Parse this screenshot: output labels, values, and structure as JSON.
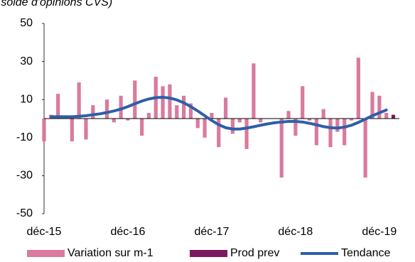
{
  "chart_data": {
    "type": "bar",
    "title": "(solde d'opinions CVS)",
    "categories": [
      "déc-15",
      null,
      null,
      null,
      null,
      null,
      null,
      null,
      null,
      null,
      null,
      null,
      "déc-16",
      null,
      null,
      null,
      null,
      null,
      null,
      null,
      null,
      null,
      null,
      null,
      "déc-17",
      null,
      null,
      null,
      null,
      null,
      null,
      null,
      null,
      null,
      null,
      null,
      "déc-18",
      null,
      null,
      null,
      null,
      null,
      null,
      null,
      null,
      null,
      null,
      null,
      "déc-19",
      null,
      null
    ],
    "series": [
      {
        "name": "Variation sur m-1",
        "type": "bar",
        "color": "#d97a9e",
        "values": [
          -12,
          2,
          13,
          0,
          -12,
          19,
          -11,
          7,
          0,
          10,
          -2,
          12,
          -1,
          20,
          -9,
          3,
          22,
          17,
          18,
          7,
          12,
          8,
          -5,
          -10,
          3,
          -15,
          11,
          -8,
          -2,
          -16,
          29,
          -2,
          0,
          0,
          -31,
          4,
          -9,
          17,
          -1,
          -14,
          5,
          -15,
          -7,
          -14,
          -1,
          32,
          -31,
          14,
          12,
          3,
          null
        ]
      },
      {
        "name": "Prod prev",
        "type": "bar",
        "color": "#7b1a5e",
        "values": [
          null,
          null,
          null,
          null,
          null,
          null,
          null,
          null,
          null,
          null,
          null,
          null,
          null,
          null,
          null,
          null,
          null,
          null,
          null,
          null,
          null,
          null,
          null,
          null,
          null,
          null,
          null,
          null,
          null,
          null,
          null,
          null,
          null,
          null,
          null,
          null,
          null,
          null,
          null,
          null,
          null,
          null,
          null,
          null,
          null,
          null,
          null,
          null,
          null,
          null,
          2
        ]
      },
      {
        "name": "Tendance",
        "type": "line",
        "color": "#2e5fa8",
        "values": [
          null,
          1,
          1,
          1,
          1,
          1.2,
          1.5,
          2,
          2.5,
          3.2,
          4,
          5,
          6.3,
          7.8,
          9.2,
          10.3,
          11,
          11.2,
          10.8,
          9.8,
          8.3,
          6.3,
          4,
          1.5,
          -1,
          -3.2,
          -4.8,
          -5.5,
          -5.5,
          -5,
          -4.3,
          -3.5,
          -2.8,
          -2.2,
          -1.8,
          -1.5,
          -1.5,
          -1.8,
          -2.5,
          -3.3,
          -4.2,
          -4.8,
          -5,
          -4.5,
          -3.5,
          -2,
          -0.3,
          1.5,
          3,
          4.5,
          null
        ]
      }
    ],
    "ylim": [
      -50,
      50
    ],
    "yticks": [
      50,
      30,
      10,
      -10,
      -30,
      -50
    ],
    "grid": false,
    "legend": "bottom"
  }
}
